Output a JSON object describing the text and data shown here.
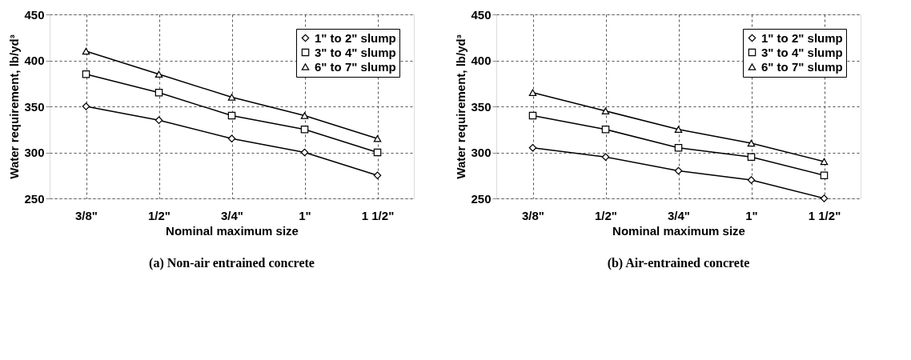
{
  "chart_data": [
    {
      "type": "line",
      "title": "(a) Non-air entrained concrete",
      "xlabel": "Nominal maximum size",
      "ylabel": "Water requirement, lb/yd³",
      "categories": [
        "3/8\"",
        "1/2\"",
        "3/4\"",
        "1\"",
        "1 1/2\""
      ],
      "series": [
        {
          "name": "1\" to 2\" slump",
          "color": "#000000",
          "marker": "diamond",
          "values": [
            350,
            335,
            315,
            300,
            275
          ]
        },
        {
          "name": "3\" to 4\" slump",
          "color": "#000000",
          "marker": "square",
          "values": [
            385,
            365,
            340,
            325,
            300
          ]
        },
        {
          "name": "6\" to 7\" slump",
          "color": "#000000",
          "marker": "triangle",
          "values": [
            410,
            385,
            360,
            340,
            315
          ]
        }
      ],
      "ylim": [
        250,
        450
      ],
      "yticks": [
        250,
        300,
        350,
        400,
        450
      ],
      "grid": true,
      "legend": "top right",
      "line_style": "solid"
    },
    {
      "type": "line",
      "title": "(b) Air-entrained concrete",
      "xlabel": "Nominal maximum size",
      "ylabel": "Water requirement, lb/yd³",
      "categories": [
        "3/8\"",
        "1/2\"",
        "3/4\"",
        "1\"",
        "1 1/2\""
      ],
      "series": [
        {
          "name": "1\" to 2\" slump",
          "color": "#000000",
          "marker": "diamond",
          "values": [
            305,
            295,
            280,
            270,
            250
          ]
        },
        {
          "name": "3\" to 4\" slump",
          "color": "#000000",
          "marker": "square",
          "values": [
            340,
            325,
            305,
            295,
            275
          ]
        },
        {
          "name": "6\" to 7\" slump",
          "color": "#000000",
          "marker": "triangle",
          "values": [
            365,
            345,
            325,
            310,
            290
          ]
        }
      ],
      "ylim": [
        250,
        450
      ],
      "yticks": [
        250,
        300,
        350,
        400,
        450
      ],
      "grid": true,
      "legend": "top right",
      "line_style": "solid"
    }
  ]
}
